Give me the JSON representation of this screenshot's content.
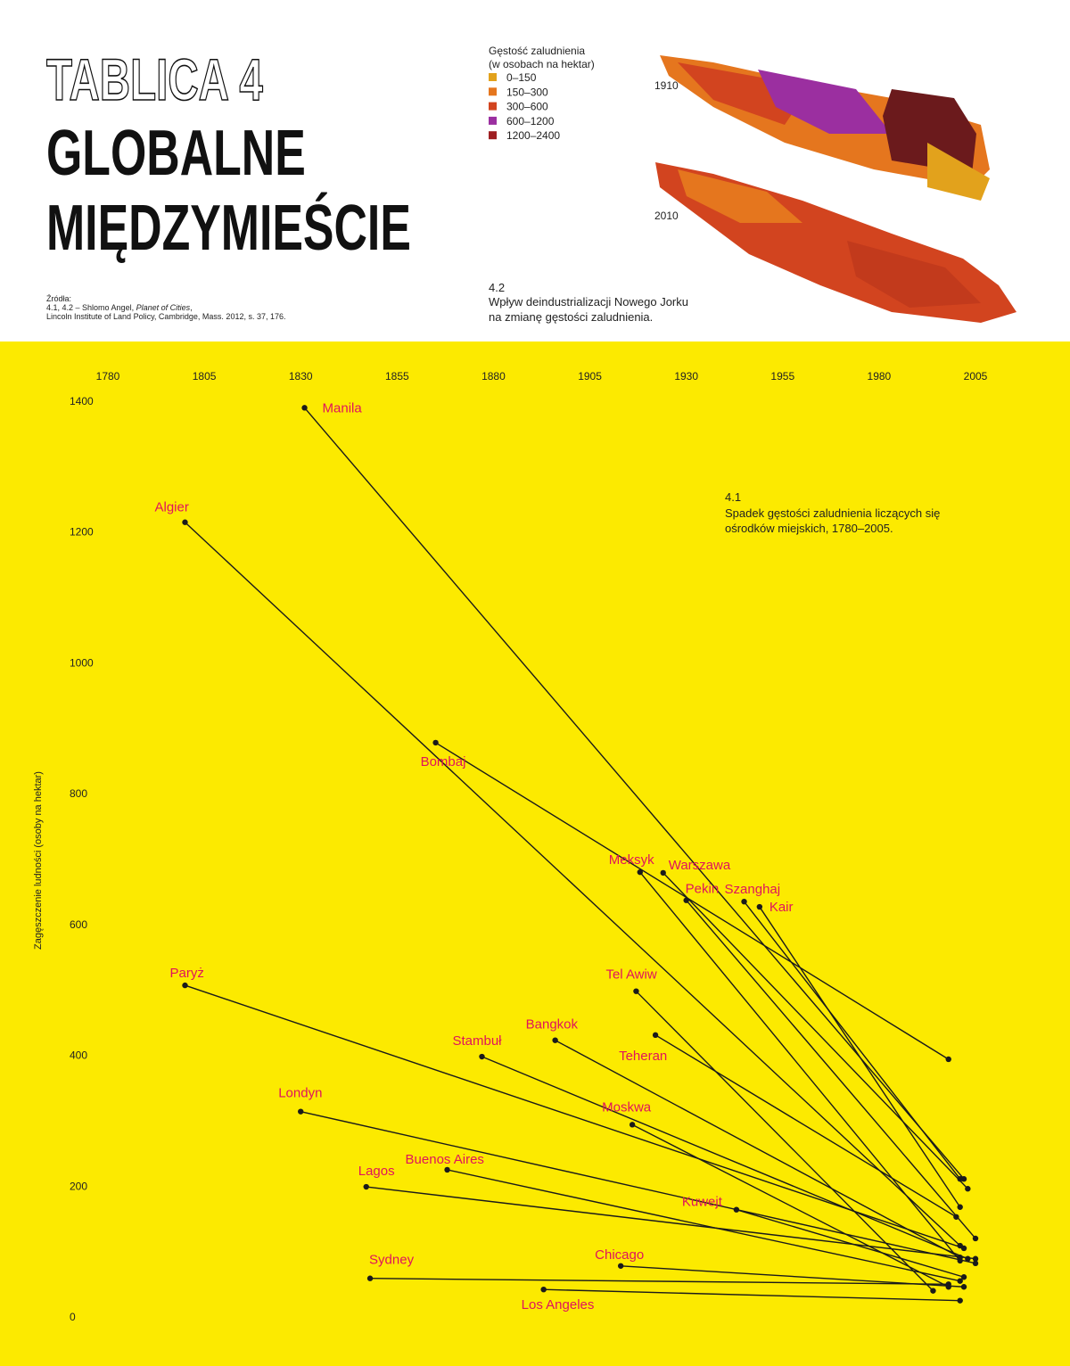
{
  "header": {
    "kicker": "TABLICA 4",
    "title_lines": [
      "GLOBALNE",
      "MIĘDZYMIEŚCIE"
    ],
    "sources": {
      "heading": "Źródła:",
      "line1_before": "4.1, 4.2 – Shlomo Angel, ",
      "line1_italic": "Planet of Cities",
      "line1_after": ",",
      "line2": "Lincoln Institute of Land Policy, Cambridge, Mass. 2012, s. 37, 176."
    }
  },
  "figure_4_2": {
    "legend_title": [
      "Gęstość zaludnienia",
      "(w osobach na hektar)"
    ],
    "legend": [
      {
        "label": "0–150",
        "color": "#e2a21c"
      },
      {
        "label": "150–300",
        "color": "#e5761e"
      },
      {
        "label": "300–600",
        "color": "#d2441f"
      },
      {
        "label": "600–1200",
        "color": "#9b2fa0"
      },
      {
        "label": "1200–2400",
        "color": "#9e1f22"
      }
    ],
    "year_labels": [
      "1910",
      "2010"
    ],
    "caption_number": "4.2",
    "caption_lines": [
      "Wpływ deindustrializacji Nowego Jorku",
      "na zmianę gęstości zaludnienia."
    ]
  },
  "chart_data": {
    "type": "line",
    "y_label": "Zagęszczenie ludności (osoby na hektar)",
    "annotation": {
      "number": "4.1",
      "lines": [
        "Spadek gęstości zaludnienia liczących się",
        "ośrodków miejskich, 1780–2005."
      ]
    },
    "xlim": [
      1780,
      2005
    ],
    "xticks": [
      1780,
      1805,
      1830,
      1855,
      1880,
      1905,
      1930,
      1955,
      1980,
      2005
    ],
    "ylim": [
      0,
      1400
    ],
    "yticks": [
      0,
      200,
      400,
      600,
      800,
      1000,
      1200,
      1400
    ],
    "line_color": "#1a1a1a",
    "label_color": "#e0135c",
    "series": [
      {
        "name": "Manila",
        "x": [
          1831,
          2002
        ],
        "values": [
          1390,
          211
        ]
      },
      {
        "name": "Algier",
        "x": [
          1800,
          2001
        ],
        "values": [
          1215,
          109
        ]
      },
      {
        "name": "Bombaj",
        "x": [
          1865,
          1998
        ],
        "values": [
          878,
          394
        ]
      },
      {
        "name": "Paryż",
        "x": [
          1800,
          2002
        ],
        "values": [
          507,
          105
        ]
      },
      {
        "name": "Meksyk",
        "x": [
          1918,
          2001
        ],
        "values": [
          680,
          86
        ]
      },
      {
        "name": "Warszawa",
        "x": [
          1924,
          2003
        ],
        "values": [
          679,
          196
        ]
      },
      {
        "name": "Pekin",
        "x": [
          1930,
          2005
        ],
        "values": [
          637,
          120
        ]
      },
      {
        "name": "Szanghaj",
        "x": [
          1945,
          2001
        ],
        "values": [
          635,
          211
        ]
      },
      {
        "name": "Kair",
        "x": [
          1949,
          2001
        ],
        "values": [
          627,
          168
        ]
      },
      {
        "name": "Tel Awiw",
        "x": [
          1917,
          1994
        ],
        "values": [
          498,
          40
        ]
      },
      {
        "name": "Teheran",
        "x": [
          1922,
          2000
        ],
        "values": [
          431,
          153
        ]
      },
      {
        "name": "Bangkok",
        "x": [
          1896,
          2001
        ],
        "values": [
          423,
          91
        ]
      },
      {
        "name": "Stambuł",
        "x": [
          1877,
          2003
        ],
        "values": [
          398,
          89
        ]
      },
      {
        "name": "Moskwa",
        "x": [
          1916,
          1998
        ],
        "values": [
          294,
          46
        ]
      },
      {
        "name": "Londyn",
        "x": [
          1830,
          2005
        ],
        "values": [
          314,
          82
        ]
      },
      {
        "name": "Buenos Aires",
        "x": [
          1868,
          2001
        ],
        "values": [
          225,
          55
        ]
      },
      {
        "name": "Lagos",
        "x": [
          1847,
          2005
        ],
        "values": [
          199,
          89
        ]
      },
      {
        "name": "Kuwejt",
        "x": [
          1943,
          2002
        ],
        "values": [
          164,
          61
        ]
      },
      {
        "name": "Chicago",
        "x": [
          1913,
          2002
        ],
        "values": [
          78,
          46
        ]
      },
      {
        "name": "Sydney",
        "x": [
          1848,
          1998
        ],
        "values": [
          59,
          50
        ]
      },
      {
        "name": "Los Angeles",
        "x": [
          1893,
          2001
        ],
        "values": [
          42,
          25
        ]
      }
    ]
  }
}
